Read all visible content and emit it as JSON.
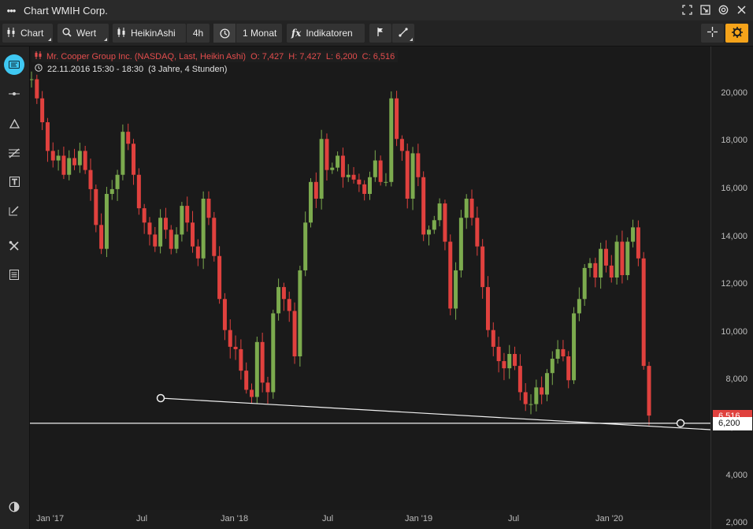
{
  "window": {
    "title": "Chart WMIH Corp."
  },
  "toolbar": {
    "chart_label": "Chart",
    "value_label": "Wert",
    "style_label": "HeikinAshi",
    "interval_label": "4h",
    "range_label": "1 Monat",
    "indicators_label": "Indikatoren"
  },
  "legend": {
    "name": "Mr. Cooper Group Inc. (NASDAQ, Last, Heikin Ashi)",
    "open": "O: 7,427",
    "high": "H: 7,427",
    "low": "L: 6,200",
    "close": "C: 6,516",
    "date": "22.11.2016 15:30 - 18:30",
    "span": "(3 Jahre, 4 Stunden)"
  },
  "price_tags": {
    "close": "6,516",
    "line": "6,200"
  },
  "colors": {
    "up": "#7cab4e",
    "down": "#e0413e",
    "accent": "#f5a31a",
    "active": "#3fc8f2"
  },
  "chart_data": {
    "type": "candlestick",
    "y_ticks": [
      "2,000",
      "4,000",
      "6,000",
      "8,000",
      "10,000",
      "12,000",
      "14,000",
      "16,000",
      "18,000",
      "20,000"
    ],
    "x_ticks": [
      "Jan '17",
      "Jul",
      "Jan '18",
      "Jul",
      "Jan '19",
      "Jul",
      "Jan '20"
    ],
    "ylim": [
      2000,
      21500
    ],
    "series": [
      {
        "values": [
          20.6,
          19.8,
          18.8,
          17.6,
          17.2,
          17.4,
          16.6,
          17.3,
          17.0,
          17.6,
          16.8,
          16.0,
          14.5,
          13.5,
          15.8,
          16.0,
          16.6,
          18.4,
          17.9,
          16.6,
          15.2,
          14.6,
          14.1,
          13.6,
          14.8,
          14.3,
          13.5,
          14.1,
          15.3,
          14.6,
          13.6,
          13.1,
          15.6,
          14.8,
          13.2,
          11.4,
          10.1,
          9.4,
          9.3,
          8.4,
          7.6,
          7.3,
          9.6,
          7.9,
          7.5,
          10.8,
          11.9,
          11.4,
          10.9,
          9.0,
          12.6,
          14.6,
          16.3,
          15.6,
          18.1,
          16.8,
          16.9,
          17.4,
          16.5,
          16.6,
          16.4,
          16.2,
          15.8,
          16.5,
          17.2,
          16.3,
          16.3,
          19.8,
          18.1,
          17.6,
          15.6,
          17.5,
          16.5,
          14.1,
          14.3,
          14.7,
          15.4,
          13.8,
          11.0,
          12.6,
          14.8,
          15.6,
          14.8,
          13.6,
          11.9,
          10.1,
          9.4,
          8.8,
          8.5,
          9.1,
          8.6,
          7.5,
          7.0,
          7.0,
          7.7,
          7.4,
          8.3,
          8.9,
          9.3,
          9.0,
          8.0,
          10.8,
          11.4,
          12.7,
          12.9,
          12.3,
          13.5,
          12.8,
          12.3,
          13.8,
          12.4,
          13.8,
          14.4,
          13.1,
          8.6,
          6.52
        ]
      }
    ]
  }
}
